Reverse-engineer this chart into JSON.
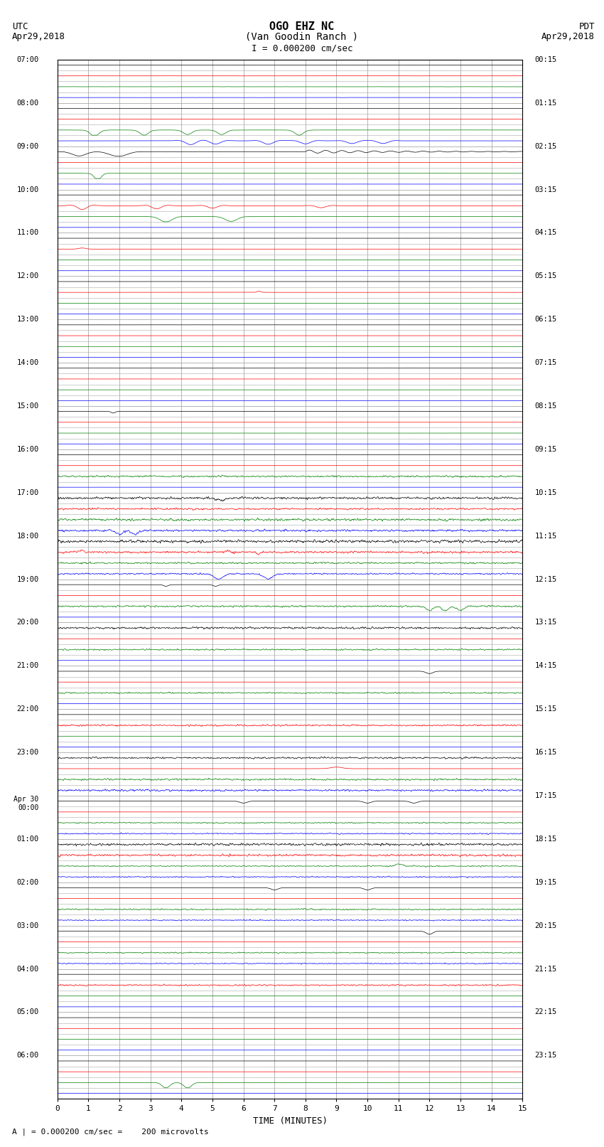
{
  "title_line1": "OGO EHZ NC",
  "title_line2": "(Van Goodin Ranch )",
  "title_line3": "I = 0.000200 cm/sec",
  "left_label_top": "UTC",
  "left_label_date": "Apr29,2018",
  "right_label_top": "PDT",
  "right_label_date": "Apr29,2018",
  "xlabel": "TIME (MINUTES)",
  "bottom_note": "A | = 0.000200 cm/sec =    200 microvolts",
  "utc_labels": [
    "07:00",
    "08:00",
    "09:00",
    "10:00",
    "11:00",
    "12:00",
    "13:00",
    "14:00",
    "15:00",
    "16:00",
    "17:00",
    "18:00",
    "19:00",
    "20:00",
    "21:00",
    "22:00",
    "23:00",
    "Apr 30\n00:00",
    "01:00",
    "02:00",
    "03:00",
    "04:00",
    "05:00",
    "06:00"
  ],
  "pdt_labels": [
    "00:15",
    "01:15",
    "02:15",
    "03:15",
    "04:15",
    "05:15",
    "06:15",
    "07:15",
    "08:15",
    "09:15",
    "10:15",
    "11:15",
    "12:15",
    "13:15",
    "14:15",
    "15:15",
    "16:15",
    "17:15",
    "18:15",
    "19:15",
    "20:15",
    "21:15",
    "22:15",
    "23:15"
  ],
  "n_rows": 96,
  "rows_per_hour": 4,
  "x_min": 0,
  "x_max": 15,
  "background_color": "#ffffff",
  "grid_color": "#aaaaaa",
  "trace_colors_cycle": [
    "black",
    "red",
    "green",
    "blue"
  ],
  "figsize": [
    8.5,
    16.13
  ],
  "dpi": 100
}
